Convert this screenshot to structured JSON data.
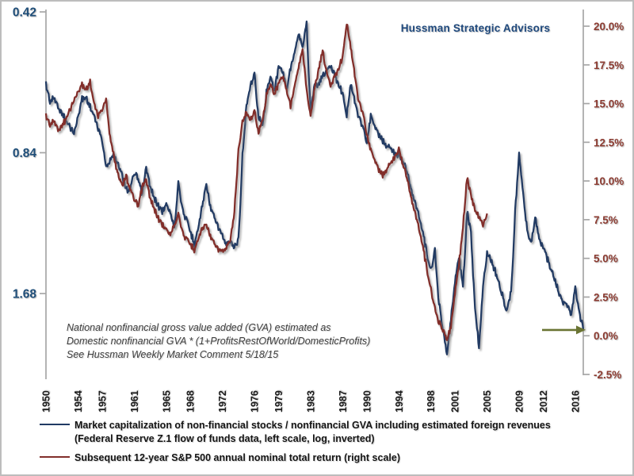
{
  "header": {
    "brand": "Hussman Strategic Advisors"
  },
  "annotation": {
    "line1": "National nonfinancial gross value added (GVA) estimated as",
    "line2": "Domestic nonfinancial GVA * (1+ProfitsRestOfWorld/DomesticProfits)",
    "line3": "See Hussman Weekly Market Comment 5/18/15"
  },
  "legend": {
    "series1_line1": "Market capitalization of non-financial stocks / nonfinancial GVA including estimated foreign revenues",
    "series1_line2": "(Federal Reserve Z.1 flow of funds data, left scale, log, inverted)",
    "series2": "Subsequent 12-year S&P 500 annual nominal total return (right scale)"
  },
  "colors": {
    "background": "#FFFFFF",
    "frame_border": "#BDBDBD",
    "axis_gray": "#A6A6A6",
    "title_blue": "#1F497D",
    "left_label_blue": "#1F4E79",
    "right_label_red": "#8C3B31",
    "blue_line": "#203A64",
    "red_line": "#822F2B",
    "arrow_olive": "#6A7433"
  },
  "chart_data": {
    "type": "line",
    "title": "Hussman Strategic Advisors",
    "grid": false,
    "legend_position": "bottom",
    "x_axis": {
      "range": [
        1950,
        2017
      ],
      "tick_years": [
        1950,
        1954,
        1957,
        1961,
        1965,
        1968,
        1972,
        1976,
        1979,
        1983,
        1987,
        1990,
        1994,
        1998,
        2001,
        2005,
        2009,
        2012,
        2016
      ],
      "label_rotation_deg": -90
    },
    "left_axis": {
      "scale": "log2, inverted (values increase downward)",
      "top_value": 0.42,
      "tick_values": [
        0.42,
        0.84,
        1.68
      ],
      "tick_labels": [
        "0.42",
        "0.84",
        "1.68"
      ]
    },
    "right_axis": {
      "scale": "linear",
      "range": [
        -2.5,
        20.0
      ],
      "tick_step": 2.5,
      "tick_values": [
        20.0,
        17.5,
        15.0,
        12.5,
        10.0,
        7.5,
        5.0,
        2.5,
        0.0,
        -2.5
      ],
      "tick_labels": [
        "20.0%",
        "17.5%",
        "15.0%",
        "12.5%",
        "10.0%",
        "7.5%",
        "5.0%",
        "2.5%",
        "0.0%",
        "-2.5%"
      ]
    },
    "series": [
      {
        "name": "Market capitalization of non-financial stocks / nonfinancial GVA including estimated foreign revenues (left scale, log, inverted)",
        "axis": "left",
        "color": "#203A64",
        "start_year": 1950,
        "step_years": 0.5,
        "values": [
          0.6,
          0.655,
          0.64,
          0.67,
          0.69,
          0.72,
          0.74,
          0.765,
          0.7,
          0.645,
          0.64,
          0.67,
          0.7,
          0.745,
          0.79,
          0.9,
          0.87,
          0.85,
          0.89,
          0.93,
          1.01,
          1.0,
          0.93,
          0.96,
          1.03,
          0.9,
          1.0,
          1.05,
          1.09,
          1.12,
          1.08,
          1.13,
          1.21,
          0.97,
          1.1,
          1.17,
          1.24,
          1.31,
          1.21,
          1.09,
          0.97,
          1.1,
          1.16,
          1.21,
          1.27,
          1.33,
          1.3,
          1.34,
          1.28,
          0.85,
          0.66,
          0.6,
          0.57,
          0.7,
          0.74,
          0.62,
          0.58,
          0.62,
          0.55,
          0.56,
          0.62,
          0.55,
          0.51,
          0.465,
          0.5,
          0.445,
          0.68,
          0.6,
          0.6,
          0.575,
          0.56,
          0.545,
          0.57,
          0.6,
          0.63,
          0.7,
          0.6,
          0.655,
          0.7,
          0.74,
          0.8,
          0.7,
          0.74,
          0.77,
          0.79,
          0.81,
          0.82,
          0.84,
          0.855,
          0.875,
          0.92,
          1.0,
          1.07,
          1.14,
          1.24,
          1.38,
          1.5,
          1.35,
          1.75,
          2.02,
          2.25,
          1.9,
          1.58,
          1.4,
          1.62,
          1.12,
          1.25,
          1.8,
          2.18,
          1.6,
          1.38,
          1.42,
          1.5,
          1.6,
          1.72,
          1.83,
          1.65,
          1.12,
          0.84,
          1.02,
          1.23,
          1.31,
          1.16,
          1.27,
          1.34,
          1.41,
          1.49,
          1.58,
          1.68,
          1.76,
          1.79,
          1.87,
          1.64,
          1.83,
          2.01
        ]
      },
      {
        "name": "Subsequent 12-year S&P 500 annual nominal total return (right scale)",
        "axis": "right",
        "color": "#822F2B",
        "start_year": 1950,
        "step_years": 0.5,
        "values": [
          14.2,
          13.6,
          13.9,
          13.3,
          13.6,
          14.0,
          14.6,
          15.2,
          15.8,
          16.2,
          15.9,
          16.4,
          15.0,
          14.2,
          14.6,
          15.3,
          12.8,
          11.5,
          10.4,
          9.8,
          10.3,
          9.5,
          8.8,
          8.3,
          9.6,
          10.1,
          8.8,
          8.2,
          7.6,
          7.2,
          6.9,
          6.5,
          7.2,
          7.9,
          6.8,
          6.2,
          5.9,
          5.6,
          6.3,
          6.9,
          7.3,
          6.4,
          5.9,
          5.6,
          5.4,
          5.6,
          6.2,
          8.0,
          12.0,
          13.8,
          14.5,
          14.0,
          14.5,
          13.2,
          13.8,
          15.6,
          16.2,
          15.6,
          16.3,
          16.8,
          15.8,
          14.9,
          16.2,
          17.4,
          18.5,
          15.8,
          14.2,
          16.0,
          17.2,
          18.4,
          17.0,
          16.2,
          16.8,
          17.3,
          18.0,
          20.2,
          18.6,
          16.8,
          15.2,
          14.4,
          13.0,
          12.0,
          11.3,
          10.7,
          10.4,
          10.8,
          11.2,
          11.6,
          12.0,
          11.1,
          10.2,
          9.0,
          8.0,
          7.0,
          5.8,
          4.3,
          3.0,
          1.8,
          0.9,
          0.3,
          -0.2,
          0.6,
          2.8,
          4.6,
          7.0,
          10.2,
          9.0,
          8.1,
          7.7,
          7.2,
          7.9
        ]
      }
    ],
    "annotation_arrow": {
      "color": "#6A7433",
      "points_at_series": "left",
      "year": 2017,
      "value": 2.01
    }
  }
}
